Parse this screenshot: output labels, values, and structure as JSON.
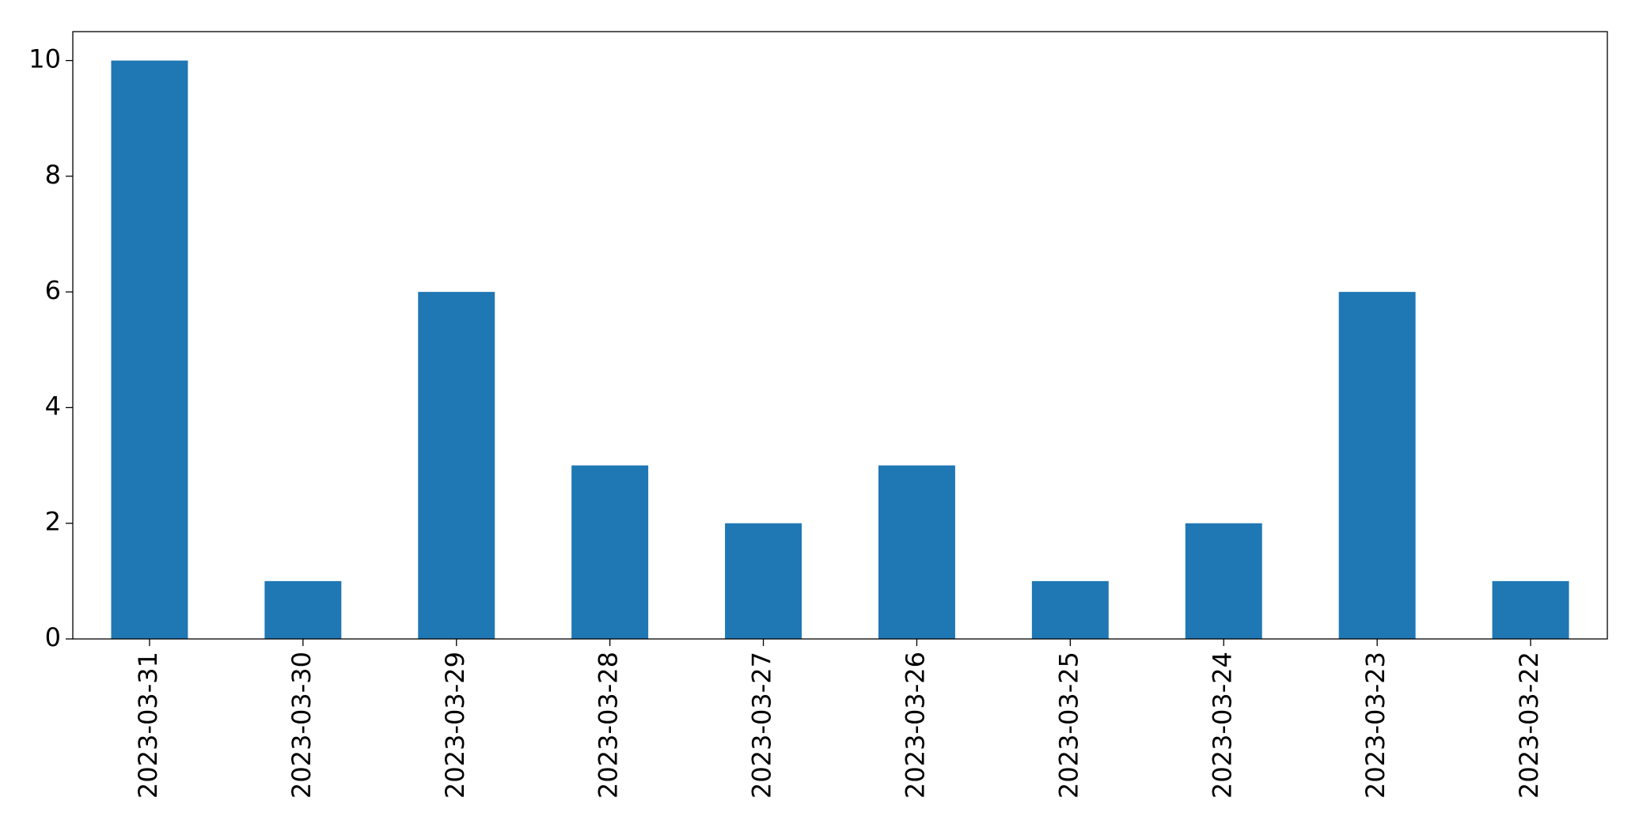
{
  "chart_data": {
    "type": "bar",
    "categories": [
      "2023-03-31",
      "2023-03-30",
      "2023-03-29",
      "2023-03-28",
      "2023-03-27",
      "2023-03-26",
      "2023-03-25",
      "2023-03-24",
      "2023-03-23",
      "2023-03-22"
    ],
    "values": [
      10,
      1,
      6,
      3,
      2,
      3,
      1,
      2,
      6,
      1
    ],
    "color": "#1f77b4",
    "ylim": [
      0,
      10.5
    ],
    "yticks": [
      0,
      2,
      4,
      6,
      8,
      10
    ],
    "grid": false
  }
}
